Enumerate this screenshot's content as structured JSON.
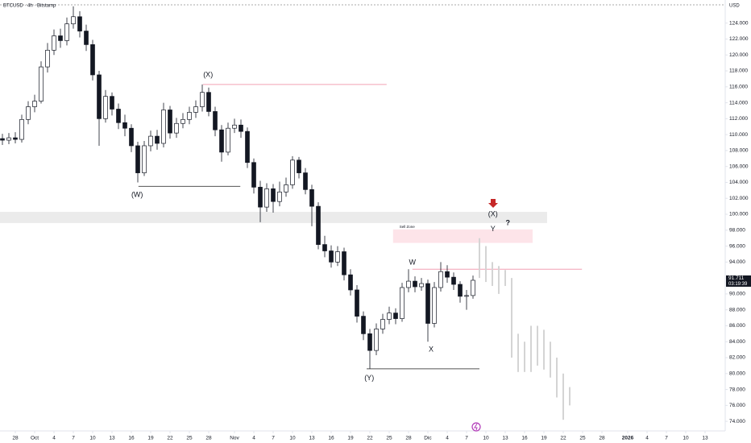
{
  "chart_data": {
    "type": "candlestick",
    "title": "BTCUSD · 4h · Bitstamp",
    "currency": "USD",
    "up_color": "#ffffff",
    "down_color": "#131722",
    "edge_color": "#131722",
    "grid": false,
    "xlim": [
      -2.375,
      110.125
    ],
    "ylim": [
      72800,
      126900
    ],
    "x": [
      -2,
      -1,
      0,
      1,
      2,
      3,
      4,
      5,
      6,
      7,
      8,
      9,
      10,
      11,
      12,
      13,
      14,
      15,
      16,
      17,
      18,
      19,
      20,
      21,
      22,
      23,
      24,
      25,
      26,
      27,
      28,
      29,
      30,
      31,
      32,
      33,
      34,
      35,
      36,
      37,
      38,
      39,
      40,
      41,
      42,
      43,
      44,
      45,
      46,
      47,
      48,
      49,
      50,
      51,
      52,
      53,
      54,
      55,
      56,
      57,
      58,
      59,
      60,
      61,
      62,
      63,
      64,
      65,
      66,
      67,
      68,
      69,
      70,
      71
    ],
    "open": [
      109500,
      109300,
      109600,
      109400,
      111900,
      113500,
      114200,
      118500,
      120600,
      122400,
      121800,
      123900,
      124800,
      123000,
      121300,
      117500,
      112000,
      114800,
      113200,
      111500,
      110800,
      108600,
      105200,
      108600,
      109800,
      108900,
      113100,
      110200,
      111400,
      111900,
      112800,
      113500,
      115300,
      112900,
      110600,
      107800,
      110800,
      111200,
      110400,
      106500,
      103400,
      100900,
      103200,
      101600,
      102800,
      103700,
      106800,
      105200,
      103100,
      101000,
      96200,
      95400,
      94000,
      95300,
      92400,
      90500,
      87200,
      85000,
      82900,
      85600,
      86800,
      87600,
      86900,
      90800,
      91600,
      90900,
      91300,
      86300,
      90800,
      92800,
      92100,
      91200,
      89700,
      89800
    ],
    "high": [
      110100,
      110200,
      110300,
      112500,
      114200,
      115000,
      119200,
      121500,
      123200,
      123300,
      124700,
      126100,
      125500,
      123800,
      121900,
      118000,
      115600,
      115300,
      113900,
      112500,
      111300,
      109100,
      109200,
      110500,
      110600,
      114000,
      113600,
      112100,
      112700,
      113500,
      114300,
      116300,
      115900,
      113500,
      111200,
      111500,
      112000,
      111900,
      110900,
      107000,
      104200,
      103900,
      103800,
      104100,
      104600,
      107300,
      107200,
      105800,
      103700,
      101500,
      97300,
      96100,
      96000,
      95800,
      93100,
      91100,
      87800,
      85600,
      86300,
      87500,
      88400,
      88200,
      91400,
      93100,
      92200,
      92000,
      91800,
      91500,
      94000,
      93600,
      92700,
      91600,
      90500,
      92300
    ],
    "low": [
      108700,
      108800,
      108900,
      109000,
      111300,
      112800,
      113900,
      117800,
      120000,
      120900,
      121200,
      123300,
      122200,
      120500,
      116800,
      108600,
      111500,
      112400,
      110700,
      109800,
      107800,
      104000,
      104800,
      107900,
      108100,
      108400,
      109500,
      109600,
      110800,
      111300,
      112100,
      112900,
      112300,
      109800,
      106600,
      107400,
      110200,
      109600,
      105800,
      102600,
      99000,
      100300,
      100200,
      101000,
      102200,
      103200,
      104500,
      102500,
      98500,
      95600,
      94600,
      93300,
      93500,
      91700,
      89800,
      86400,
      84200,
      80600,
      82300,
      85000,
      86200,
      86200,
      86500,
      90200,
      90200,
      90400,
      84000,
      85800,
      90300,
      91400,
      90500,
      88900,
      88000,
      89400
    ],
    "close": [
      109300,
      109600,
      109400,
      111900,
      113500,
      114200,
      118500,
      120600,
      122400,
      121800,
      123900,
      124800,
      123000,
      121300,
      117500,
      112000,
      114800,
      113200,
      111500,
      110800,
      108600,
      105200,
      108600,
      109800,
      108900,
      113100,
      110200,
      111400,
      111900,
      112800,
      113500,
      115300,
      112900,
      110600,
      107800,
      110800,
      111200,
      110400,
      106500,
      103400,
      100900,
      103200,
      101600,
      102800,
      103700,
      106800,
      105200,
      103100,
      101000,
      96200,
      95400,
      94000,
      95300,
      92400,
      90500,
      87200,
      85000,
      82900,
      85600,
      86800,
      87600,
      86900,
      90800,
      91600,
      90900,
      91300,
      86300,
      90800,
      92800,
      92100,
      91200,
      89700,
      89800,
      91711
    ],
    "last_label": "91.711",
    "countdown": "03:19:39",
    "projection": {
      "color": "#d4d4d4",
      "x": [
        72,
        73,
        74,
        75,
        76,
        77,
        78,
        79,
        80,
        81,
        82,
        83,
        84,
        85,
        86
      ],
      "high": [
        97000,
        96000,
        94000,
        93500,
        93000,
        92000,
        85000,
        84000,
        86000,
        86000,
        85500,
        84000,
        82000,
        80000,
        78300
      ],
      "low": [
        92000,
        91500,
        91000,
        90000,
        91000,
        82000,
        80200,
        80200,
        80200,
        81000,
        80500,
        79500,
        77000,
        74200,
        76000
      ]
    },
    "levels": [
      {
        "value": 116300,
        "from": 29.1,
        "to": 57.6,
        "color": "#f2a0b4"
      },
      {
        "value": 103500,
        "from": 19.1,
        "to": 34.9,
        "color": "#555555"
      },
      {
        "value": 80600,
        "from": 54.5,
        "to": 72,
        "color": "#555555"
      },
      {
        "value": 93100,
        "from": 61.6,
        "to": 87.9,
        "color": "#f2a0b4"
      }
    ],
    "zones": [
      {
        "top": 100300,
        "bottom": 98900,
        "from": -2.375,
        "to": 82.5,
        "color": "#ebebeb"
      },
      {
        "top": 98100,
        "bottom": 96400,
        "from": 58.6,
        "to": 80.25,
        "color": "#fde4e9"
      }
    ],
    "annotations": [
      {
        "text": "(X)",
        "x": 29.9,
        "y": 117500,
        "color": "#e8789a"
      },
      {
        "text": "(W)",
        "x": 18.9,
        "y": 102400,
        "color": "#e8789a"
      },
      {
        "text": "(Y)",
        "x": 54.9,
        "y": 79400,
        "color": "#e8789a"
      },
      {
        "text": "W",
        "x": 61.6,
        "y": 93900,
        "color": "#444444"
      },
      {
        "text": "X",
        "x": 64.5,
        "y": 83000,
        "color": "#444444"
      },
      {
        "text": "Y",
        "x": 74.1,
        "y": 98100,
        "color": "#444444"
      },
      {
        "text": "(X)",
        "x": 74.1,
        "y": 100000,
        "color": "#e8789a"
      },
      {
        "text": "?",
        "x": 76.4,
        "y": 98900,
        "color": "#131722"
      },
      {
        "text": "Sell Zone",
        "x": 59.6,
        "y": 98400,
        "color": "#777777"
      }
    ],
    "xticks": [
      {
        "value": 0,
        "label": "28"
      },
      {
        "value": 3,
        "label": "Oct"
      },
      {
        "value": 6,
        "label": "4"
      },
      {
        "value": 9,
        "label": "7"
      },
      {
        "value": 12,
        "label": "10"
      },
      {
        "value": 15,
        "label": "13"
      },
      {
        "value": 18,
        "label": "16"
      },
      {
        "value": 21,
        "label": "19"
      },
      {
        "value": 24,
        "label": "22"
      },
      {
        "value": 27,
        "label": "25"
      },
      {
        "value": 30,
        "label": "28"
      },
      {
        "value": 34,
        "label": "Nov"
      },
      {
        "value": 37,
        "label": "4"
      },
      {
        "value": 40,
        "label": "7"
      },
      {
        "value": 43,
        "label": "10"
      },
      {
        "value": 46,
        "label": "13"
      },
      {
        "value": 49,
        "label": "16"
      },
      {
        "value": 52,
        "label": "19"
      },
      {
        "value": 55,
        "label": "22"
      },
      {
        "value": 58,
        "label": "25"
      },
      {
        "value": 61,
        "label": "28"
      },
      {
        "value": 64,
        "label": "Dic"
      },
      {
        "value": 67,
        "label": "4"
      },
      {
        "value": 70,
        "label": "7"
      },
      {
        "value": 73,
        "label": "10"
      },
      {
        "value": 76,
        "label": "13"
      },
      {
        "value": 79,
        "label": "16"
      },
      {
        "value": 82,
        "label": "19"
      },
      {
        "value": 85,
        "label": "22"
      },
      {
        "value": 88,
        "label": "25"
      },
      {
        "value": 91,
        "label": "28"
      },
      {
        "value": 95,
        "label": "2026"
      },
      {
        "value": 98,
        "label": "4"
      },
      {
        "value": 101,
        "label": "7"
      },
      {
        "value": 104,
        "label": "10"
      },
      {
        "value": 107,
        "label": "13"
      }
    ],
    "yticks": [
      {
        "value": 74000,
        "label": "74.000"
      },
      {
        "value": 76000,
        "label": "76.000"
      },
      {
        "value": 78000,
        "label": "78.000"
      },
      {
        "value": 80000,
        "label": "80.000"
      },
      {
        "value": 82000,
        "label": "82.000"
      },
      {
        "value": 84000,
        "label": "84.000"
      },
      {
        "value": 86000,
        "label": "86.000"
      },
      {
        "value": 88000,
        "label": "88.000"
      },
      {
        "value": 90000,
        "label": "90.000"
      },
      {
        "value": 92000,
        "label": "92.000"
      },
      {
        "value": 94000,
        "label": "94.000"
      },
      {
        "value": 96000,
        "label": "96.000"
      },
      {
        "value": 98000,
        "label": "98.000"
      },
      {
        "value": 100000,
        "label": "100.000"
      },
      {
        "value": 102000,
        "label": "102.000"
      },
      {
        "value": 104000,
        "label": "104.000"
      },
      {
        "value": 106000,
        "label": "106.000"
      },
      {
        "value": 108000,
        "label": "108.000"
      },
      {
        "value": 110000,
        "label": "110.000"
      },
      {
        "value": 112000,
        "label": "112.000"
      },
      {
        "value": 114000,
        "label": "114.000"
      },
      {
        "value": 116000,
        "label": "116.000"
      },
      {
        "value": 118000,
        "label": "118.000"
      },
      {
        "value": 120000,
        "label": "120.000"
      },
      {
        "value": 122000,
        "label": "122.000"
      },
      {
        "value": 124000,
        "label": "124.000"
      }
    ]
  }
}
